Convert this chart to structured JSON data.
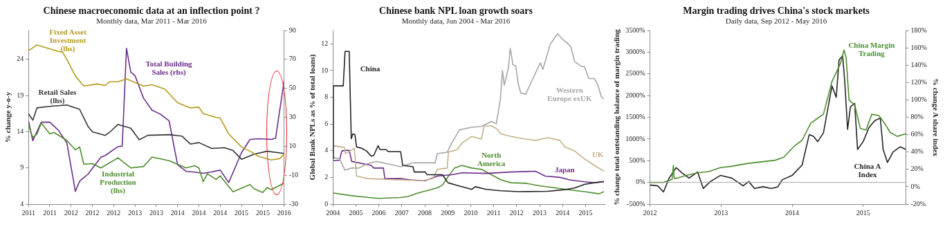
{
  "chart_data": [
    {
      "type": "line",
      "title": "Chinese macroeconomic data at an inflection point ?",
      "subtitle": "Monthly data, Mar 2011 - Mar 2016",
      "ylabel": "% change y-o-y",
      "xlim": [
        "2011-03",
        "2016-03"
      ],
      "xticks": [
        {
          "value": "2011-03",
          "label": "2011"
        },
        {
          "value": "2011-08",
          "label": "2011"
        },
        {
          "value": "2012-01",
          "label": "2012"
        },
        {
          "value": "2012-06",
          "label": "2012"
        },
        {
          "value": "2012-11",
          "label": "2012"
        },
        {
          "value": "2013-04",
          "label": "2013"
        },
        {
          "value": "2013-09",
          "label": "2013"
        },
        {
          "value": "2014-02",
          "label": "2014"
        },
        {
          "value": "2014-07",
          "label": "2014"
        },
        {
          "value": "2014-12",
          "label": "2014"
        },
        {
          "value": "2015-05",
          "label": "2015"
        },
        {
          "value": "2015-10",
          "label": "2015"
        },
        {
          "value": "2016-03",
          "label": "2016"
        }
      ],
      "ylim": [
        4,
        28
      ],
      "yticks": [
        4,
        9,
        14,
        19,
        24
      ],
      "y2lim": [
        -30,
        90
      ],
      "y2ticks": [
        -30,
        -10,
        10,
        30,
        50,
        70,
        90
      ],
      "series": [
        {
          "name": "Fixed Asset Investment (lhs)",
          "color": "#b59a1e",
          "x": [
            "2011-03",
            "2011-05",
            "2011-10",
            "2011-11",
            "2011-12",
            "2012-02",
            "2012-04",
            "2012-07",
            "2012-09",
            "2012-10",
            "2012-12",
            "2013-02",
            "2013-04",
            "2013-06",
            "2013-08",
            "2013-11",
            "2014-02",
            "2014-05",
            "2014-07",
            "2014-08",
            "2014-11",
            "2014-12",
            "2015-02",
            "2015-05",
            "2015-07",
            "2015-09",
            "2015-12",
            "2016-02",
            "2016-03"
          ],
          "values": [
            25.2,
            26.0,
            25.1,
            25.0,
            24.0,
            21.7,
            20.3,
            20.6,
            20.4,
            20.9,
            20.9,
            21.3,
            20.8,
            20.3,
            20.5,
            19.9,
            18.0,
            17.3,
            17.4,
            16.5,
            16.0,
            15.9,
            13.7,
            11.9,
            11.3,
            10.6,
            10.1,
            10.3,
            10.9
          ]
        },
        {
          "name": "Retail Sales (lhs)",
          "color": "#333333",
          "x": [
            "2011-03",
            "2011-04",
            "2011-05",
            "2011-08",
            "2011-12",
            "2012-03",
            "2012-05",
            "2012-06",
            "2012-09",
            "2012-10",
            "2012-12",
            "2013-03",
            "2013-05",
            "2013-07",
            "2013-12",
            "2014-03",
            "2014-05",
            "2014-07",
            "2014-10",
            "2015-01",
            "2015-03",
            "2015-05",
            "2015-08",
            "2015-11",
            "2016-03"
          ],
          "values": [
            16.5,
            15.6,
            17.3,
            17.5,
            17.7,
            17.1,
            14.7,
            14.0,
            13.5,
            13.9,
            15.0,
            14.5,
            12.9,
            13.5,
            13.6,
            13.4,
            12.3,
            12.5,
            11.7,
            11.8,
            11.4,
            10.2,
            10.9,
            11.3,
            11.0
          ]
        },
        {
          "name": "Industrial Production (lhs)",
          "color": "#4c8c2c",
          "x": [
            "2011-03",
            "2011-04",
            "2011-05",
            "2011-06",
            "2011-08",
            "2011-09",
            "2011-12",
            "2012-02",
            "2012-03",
            "2012-04",
            "2012-06",
            "2012-08",
            "2012-12",
            "2013-03",
            "2013-06",
            "2013-08",
            "2013-12",
            "2014-04",
            "2014-06",
            "2014-07",
            "2014-08",
            "2014-09",
            "2014-11",
            "2014-12",
            "2015-03",
            "2015-05",
            "2015-07",
            "2015-08",
            "2015-10",
            "2015-11",
            "2015-12",
            "2016-01",
            "2016-03"
          ],
          "values": [
            15.0,
            13.2,
            13.7,
            15.2,
            13.7,
            13.9,
            12.8,
            11.5,
            11.9,
            9.5,
            9.6,
            9.0,
            10.4,
            9.0,
            9.2,
            10.5,
            10.0,
            9.0,
            9.3,
            9.0,
            7.1,
            8.2,
            7.4,
            7.9,
            5.7,
            6.2,
            6.7,
            6.1,
            5.6,
            6.3,
            6.0,
            6.3,
            6.9
          ]
        },
        {
          "name": "Total Building Sales (rhs)",
          "color": "#6a2c8a",
          "axis": "y2",
          "x": [
            "2011-03",
            "2011-04",
            "2011-06",
            "2011-08",
            "2011-10",
            "2011-12",
            "2012-02",
            "2012-03",
            "2012-05",
            "2012-08",
            "2012-09",
            "2012-12",
            "2013-01",
            "2013-02",
            "2013-03",
            "2013-04",
            "2013-06",
            "2013-08",
            "2013-10",
            "2013-12",
            "2014-02",
            "2014-04",
            "2014-06",
            "2014-08",
            "2014-10",
            "2014-12",
            "2015-02",
            "2015-05",
            "2015-07",
            "2015-09",
            "2015-12",
            "2016-01",
            "2016-03"
          ],
          "values": [
            27.5,
            13.8,
            26.6,
            26.6,
            21.1,
            12.3,
            -21.2,
            -14.2,
            -9.2,
            2.4,
            3.6,
            9.7,
            10.1,
            77.7,
            61.2,
            58.8,
            43.2,
            34.9,
            32.1,
            27.5,
            -2.8,
            -7.4,
            -7.9,
            -8.7,
            -7.8,
            -6.5,
            -15.1,
            5.5,
            14.7,
            15.2,
            14.7,
            15.5,
            55.1
          ]
        }
      ]
    },
    {
      "type": "line",
      "title": "Chinese bank NPL loan growth soars",
      "subtitle": "Monthly data, Jun 2004 - Mar 2016",
      "ylabel": "Global Bank NPLs as % of total loans)",
      "xlim": [
        2004,
        2015.83
      ],
      "xticks": [
        2004,
        2005,
        2006,
        2007,
        2008,
        2009,
        2010,
        2011,
        2012,
        2013,
        2014,
        2015
      ],
      "ylim": [
        0,
        13
      ],
      "yticks": [
        0,
        2,
        4,
        6,
        8,
        10,
        12
      ],
      "series": [
        {
          "name": "China",
          "color": "#222222",
          "x": [
            2004.0,
            2004.02,
            2004.45,
            2004.53,
            2004.71,
            2004.8,
            2004.87,
            2004.96,
            2005.03,
            2005.25,
            2005.46,
            2005.67,
            2005.78,
            2005.97,
            2006.05,
            2006.31,
            2006.42,
            2006.95,
            2007.04,
            2007.49,
            2007.54,
            2008.02,
            2008.1,
            2008.77,
            2009.01,
            2009.41,
            2009.83,
            2010.04,
            2010.2,
            2010.68,
            2011.32,
            2012.07,
            2013.35,
            2014.1,
            2014.52,
            2014.95,
            2015.38,
            2015.8
          ],
          "values": [
            3.4,
            8.85,
            8.85,
            11.43,
            11.43,
            4.9,
            5.26,
            5.2,
            4.28,
            4.18,
            3.98,
            3.59,
            3.65,
            4.37,
            4.08,
            4.08,
            3.92,
            3.92,
            2.9,
            2.8,
            2.4,
            2.4,
            2.2,
            2.2,
            1.6,
            1.4,
            1.2,
            1.1,
            1.3,
            1.1,
            1.0,
            0.93,
            0.96,
            1.08,
            1.2,
            1.48,
            1.6,
            1.7
          ]
        },
        {
          "name": "Western Europe exUK",
          "color": "#a6a6a6",
          "x": [
            2004.02,
            2004.29,
            2004.52,
            2004.82,
            2005.14,
            2005.46,
            2005.89,
            2006.42,
            2006.95,
            2007.49,
            2008.02,
            2008.45,
            2008.55,
            2008.98,
            2009.14,
            2009.51,
            2010.04,
            2010.47,
            2010.9,
            2011.11,
            2011.29,
            2011.38,
            2011.46,
            2011.64,
            2011.72,
            2011.84,
            2011.96,
            2012.07,
            2012.18,
            2012.39,
            2012.6,
            2012.87,
            2013.03,
            2013.14,
            2013.46,
            2013.78,
            2013.99,
            2014.2,
            2014.36,
            2014.52,
            2014.84,
            2014.95,
            2015.14,
            2015.38,
            2015.54,
            2015.69,
            2015.8
          ],
          "values": [
            3.49,
            3.39,
            2.54,
            2.7,
            2.7,
            3.0,
            3.19,
            3.0,
            2.8,
            3.09,
            3.09,
            3.09,
            3.78,
            3.88,
            4.47,
            5.56,
            5.75,
            5.81,
            6.19,
            6.0,
            7.82,
            9.99,
            8.9,
            10.19,
            11.66,
            10.42,
            10.34,
            9.0,
            8.32,
            8.22,
            9.0,
            9.99,
            10.58,
            10.09,
            11.96,
            12.75,
            12.35,
            12.06,
            11.76,
            10.68,
            10.29,
            10.29,
            9.4,
            9.4,
            8.9,
            8.02,
            7.86
          ]
        },
        {
          "name": "UK",
          "color": "#c4b088",
          "x": [
            2004.02,
            2004.5,
            2004.55,
            2004.93,
            2005.03,
            2005.51,
            2006.95,
            2007.91,
            2008.34,
            2008.55,
            2008.98,
            2009.03,
            2009.41,
            2009.62,
            2010.04,
            2010.47,
            2010.58,
            2010.9,
            2011.11,
            2011.32,
            2011.75,
            2012.39,
            2012.82,
            2013.35,
            2013.88,
            2014.1,
            2014.52,
            2014.95,
            2015.38,
            2015.8
          ],
          "values": [
            4.37,
            4.24,
            3.78,
            4.18,
            2.1,
            1.91,
            1.81,
            1.75,
            1.91,
            2.6,
            2.7,
            3.88,
            4.08,
            4.57,
            5.06,
            4.87,
            5.85,
            5.85,
            5.66,
            5.26,
            5.06,
            4.87,
            4.77,
            4.97,
            4.77,
            4.28,
            3.98,
            3.39,
            2.9,
            2.46
          ]
        },
        {
          "name": "Japan",
          "color": "#6a2c8a",
          "x": [
            2004.02,
            2004.29,
            2004.39,
            2004.71,
            2004.82,
            2005.67,
            2005.78,
            2006.2,
            2006.26,
            2006.95,
            2007.38,
            2008.02,
            2008.55,
            2009.19,
            2009.62,
            2010.68,
            2011.75,
            2012.82,
            2013.24,
            2013.88,
            2014.31,
            2014.95,
            2015.38,
            2015.8
          ],
          "values": [
            3.25,
            3.29,
            3.98,
            4.04,
            3.19,
            2.9,
            2.7,
            2.7,
            1.91,
            1.91,
            1.81,
            1.75,
            2.1,
            2.2,
            2.34,
            2.3,
            2.4,
            2.46,
            2.1,
            2.0,
            1.81,
            1.67,
            1.6,
            1.67
          ]
        },
        {
          "name": "North America",
          "color": "#4c8c2c",
          "x": [
            2004.02,
            2004.82,
            2005.35,
            2005.99,
            2006.95,
            2007.27,
            2007.7,
            2008.13,
            2008.55,
            2008.77,
            2009.03,
            2009.3,
            2009.62,
            2010.04,
            2010.47,
            2010.9,
            2011.32,
            2011.75,
            2012.39,
            2013.03,
            2013.67,
            2014.31,
            2014.95,
            2015.59,
            2015.8
          ],
          "values": [
            0.83,
            0.63,
            0.53,
            0.43,
            0.49,
            0.57,
            0.83,
            1.02,
            1.22,
            1.42,
            2.1,
            2.7,
            2.9,
            2.7,
            2.6,
            2.2,
            1.81,
            1.6,
            1.56,
            1.36,
            1.22,
            1.06,
            0.93,
            0.77,
            0.93
          ]
        }
      ]
    },
    {
      "type": "line",
      "title": "Margin trading drives China's stock markets",
      "subtitle": "Daily data, Sep 2012 - May 2016",
      "ylabel": "% change total outstanding balance of margin trading",
      "y2label": "% change A share index",
      "xlim": [
        2012,
        2015.6
      ],
      "xticks": [
        2012,
        2013,
        2014,
        2015
      ],
      "ylim": [
        -500,
        3500
      ],
      "yticks": [
        {
          "value": -500,
          "label": "-500%"
        },
        {
          "value": 0,
          "label": "0%"
        },
        {
          "value": 500,
          "label": "500%"
        },
        {
          "value": 1000,
          "label": "1000%"
        },
        {
          "value": 1500,
          "label": "1500%"
        },
        {
          "value": 2000,
          "label": "2000%"
        },
        {
          "value": 2500,
          "label": "2500%"
        },
        {
          "value": 3000,
          "label": "3000%"
        },
        {
          "value": 3500,
          "label": "3500%"
        }
      ],
      "y2lim": [
        -20,
        180
      ],
      "y2ticks": [
        {
          "value": -20,
          "label": "-20%"
        },
        {
          "value": 0,
          "label": "0%"
        },
        {
          "value": 20,
          "label": "20%"
        },
        {
          "value": 40,
          "label": "40%"
        },
        {
          "value": 60,
          "label": "60%"
        },
        {
          "value": 80,
          "label": "80%"
        },
        {
          "value": 100,
          "label": "100%"
        },
        {
          "value": 120,
          "label": "120%"
        },
        {
          "value": 140,
          "label": "140%"
        },
        {
          "value": 160,
          "label": "160%"
        },
        {
          "value": 180,
          "label": "180%"
        }
      ],
      "ref_lines": [
        {
          "axis": "y",
          "value": 0,
          "color": "#a6a6a6"
        }
      ],
      "series": [
        {
          "name": "China Margin Trading",
          "color": "#4c8c2c",
          "x": [
            2012.0,
            2012.19,
            2012.31,
            2012.33,
            2012.34,
            2012.39,
            2012.51,
            2012.67,
            2012.83,
            2012.99,
            2013.15,
            2013.35,
            2013.55,
            2013.76,
            2013.88,
            2014.04,
            2014.14,
            2014.26,
            2014.36,
            2014.44,
            2014.56,
            2014.68,
            2014.73,
            2014.76,
            2014.8,
            2014.88,
            2014.96,
            2015.04,
            2015.12,
            2015.22,
            2015.3,
            2015.38,
            2015.48,
            2015.6
          ],
          "values": [
            0,
            0,
            70,
            390,
            90,
            100,
            160,
            220,
            250,
            340,
            370,
            430,
            470,
            510,
            580,
            850,
            970,
            1360,
            1480,
            1570,
            2320,
            2740,
            3050,
            2860,
            1900,
            1780,
            1240,
            1210,
            1570,
            1540,
            1360,
            1150,
            1060,
            1120
          ]
        },
        {
          "name": "China A Index",
          "color": "#222222",
          "axis": "y2",
          "x": [
            2012.0,
            2012.11,
            2012.19,
            2012.27,
            2012.37,
            2012.45,
            2012.55,
            2012.67,
            2012.75,
            2012.85,
            2012.99,
            2013.15,
            2013.31,
            2013.39,
            2013.47,
            2013.59,
            2013.71,
            2013.8,
            2013.86,
            2014.0,
            2014.14,
            2014.24,
            2014.3,
            2014.36,
            2014.44,
            2014.56,
            2014.62,
            2014.66,
            2014.71,
            2014.74,
            2014.78,
            2014.82,
            2014.88,
            2014.92,
            2015.0,
            2015.08,
            2015.16,
            2015.24,
            2015.28,
            2015.34,
            2015.42,
            2015.52,
            2015.6
          ],
          "values": [
            2,
            1,
            -6,
            10,
            22,
            16,
            10,
            17,
            -2,
            6,
            13,
            10,
            1,
            6,
            -2,
            0,
            -2,
            0,
            8,
            13,
            25,
            60,
            58,
            52,
            62,
            116,
            103,
            146,
            151,
            121,
            66,
            92,
            96,
            43,
            52,
            68,
            76,
            79,
            43,
            28,
            40,
            46,
            43
          ]
        }
      ]
    }
  ]
}
